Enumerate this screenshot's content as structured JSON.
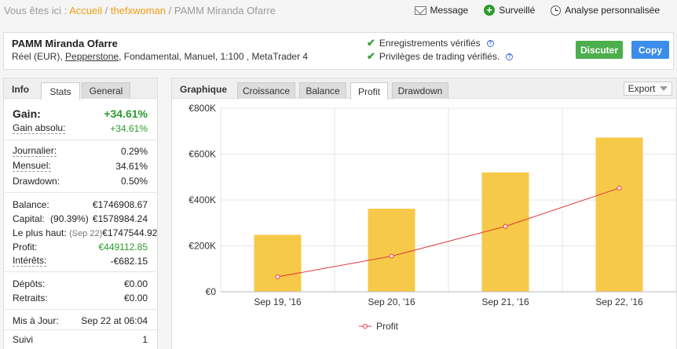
{
  "breadcrumb": {
    "prefix": "Vous êtes ici :",
    "home": "Accueil",
    "user": "thefxwoman",
    "current": "PAMM Miranda Ofarre"
  },
  "top_actions": [
    {
      "label": "Message",
      "icon": "envelope-icon"
    },
    {
      "label": "Surveillé",
      "icon": "plus-icon"
    },
    {
      "label": "Analyse personnalisée",
      "icon": "clock-icon"
    }
  ],
  "system": {
    "name": "PAMM Miranda Ofarre",
    "desc_prefix": "Réel (EUR), ",
    "broker": "Pepperstone",
    "desc_suffix": ", Fondamental, Manuel, 1:100 , MetaTrader 4",
    "verified_track": "Enregistrements vérifiés",
    "verified_privileges": "Privilèges de trading vérifiés.",
    "btn_discuss": "Discuter",
    "btn_copy": "Copy"
  },
  "info": {
    "title": "Info",
    "tabs": [
      "Stats",
      "General"
    ],
    "gain_label": "Gain:",
    "gain_value": "+34.61%",
    "abs_gain_label": "Gain absolu:",
    "abs_gain_value": "+34.61%",
    "daily_label": "Journalier:",
    "daily_value": "0.29%",
    "monthly_label": "Mensuel:",
    "monthly_value": "34.61%",
    "drawdown_label": "Drawdown:",
    "drawdown_value": "0.50%",
    "balance_label": "Balance:",
    "balance_value": "€1746908.67",
    "equity_label": "Capital:",
    "equity_pct": "(90.39%)",
    "equity_value": "€1578984.24",
    "highest_label": "Le plus haut:",
    "highest_date": "(Sep 22)",
    "highest_value": "€1747544.92",
    "profit_label": "Profit:",
    "profit_value": "€449112.85",
    "interest_label": "Intérêts:",
    "interest_value": "-€682.15",
    "deposits_label": "Dépôts:",
    "deposits_value": "€0.00",
    "withdrawals_label": "Retraits:",
    "withdrawals_value": "€0.00",
    "updated_label": "Mis à Jour:",
    "updated_value": "Sep 22 at 06:04",
    "tracking_label": "Suivi",
    "tracking_value": "1"
  },
  "chart_panel": {
    "title": "Graphique",
    "tabs": [
      "Croissance",
      "Balance",
      "Profit",
      "Drawdown"
    ],
    "active_tab": "Profit",
    "export_label": "Export"
  },
  "chart_data": {
    "type": "bar",
    "categories": [
      "Sep 19, '16",
      "Sep 20, '16",
      "Sep 21, '16",
      "Sep 22, '16"
    ],
    "series": [
      {
        "name": "",
        "type": "bar",
        "values": [
          248000,
          362000,
          520000,
          672000
        ],
        "color": "#f7c948"
      },
      {
        "name": "Profit",
        "type": "line",
        "values": [
          65000,
          155000,
          285000,
          452000
        ],
        "color": "#e0393e"
      }
    ],
    "y_ticks": [
      "€0",
      "€200K",
      "€400K",
      "€600K",
      "€800K"
    ],
    "ylim": [
      0,
      800000
    ],
    "legend": "bottom-center",
    "grid": true
  }
}
